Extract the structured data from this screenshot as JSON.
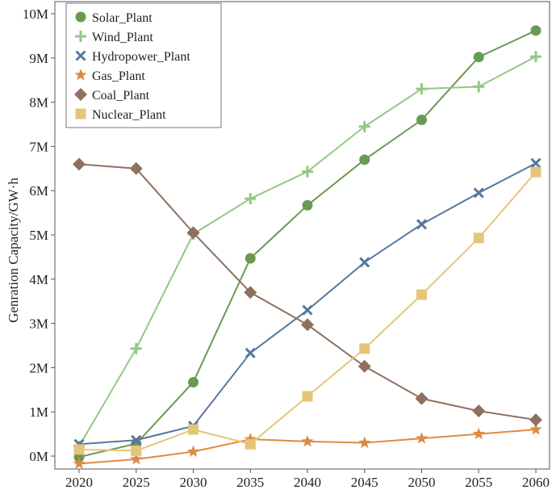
{
  "chart_data": {
    "type": "line",
    "title": "",
    "xlabel": "",
    "ylabel": "Genration Capacity/GW·h",
    "x": [
      2020,
      2025,
      2030,
      2035,
      2040,
      2045,
      2050,
      2055,
      2060
    ],
    "x_tick_labels": [
      "2020",
      "2025",
      "2030",
      "2035",
      "2040",
      "2045",
      "2050",
      "2055",
      "2060"
    ],
    "y_ticks": [
      0,
      1,
      2,
      3,
      4,
      5,
      6,
      7,
      8,
      9,
      10
    ],
    "y_tick_labels": [
      "0M",
      "1M",
      "2M",
      "3M",
      "4M",
      "5M",
      "6M",
      "7M",
      "8M",
      "9M",
      "10M"
    ],
    "xlim": [
      2020,
      2060
    ],
    "ylim": [
      0,
      10
    ],
    "y_unit": "M",
    "legend_position": "top-left",
    "grid": false,
    "series": [
      {
        "name": "Solar_Plant",
        "color": "#6a9a52",
        "marker": "circle",
        "values": [
          -0.02,
          0.28,
          1.67,
          4.47,
          5.67,
          6.7,
          7.6,
          9.02,
          9.62
        ]
      },
      {
        "name": "Wind_Plant",
        "color": "#92c983",
        "marker": "plus",
        "values": [
          0.22,
          2.43,
          5.02,
          5.82,
          6.43,
          7.45,
          8.3,
          8.35,
          9.03
        ]
      },
      {
        "name": "Hydropower_Plant",
        "color": "#5777a0",
        "marker": "x",
        "values": [
          0.27,
          0.36,
          0.68,
          2.33,
          3.3,
          4.38,
          5.24,
          5.95,
          6.62
        ]
      },
      {
        "name": "Gas_Plant",
        "color": "#dc8b45",
        "marker": "star",
        "values": [
          -0.17,
          -0.07,
          0.1,
          0.38,
          0.33,
          0.3,
          0.4,
          0.5,
          0.6
        ]
      },
      {
        "name": "Coal_Plant",
        "color": "#8f7060",
        "marker": "diamond",
        "values": [
          6.6,
          6.5,
          5.05,
          3.7,
          2.97,
          2.03,
          1.3,
          1.02,
          0.82
        ]
      },
      {
        "name": "Nuclear_Plant",
        "color": "#e6c47a",
        "marker": "square",
        "values": [
          0.15,
          0.12,
          0.6,
          0.27,
          1.35,
          2.43,
          3.65,
          4.93,
          6.42
        ]
      }
    ]
  }
}
